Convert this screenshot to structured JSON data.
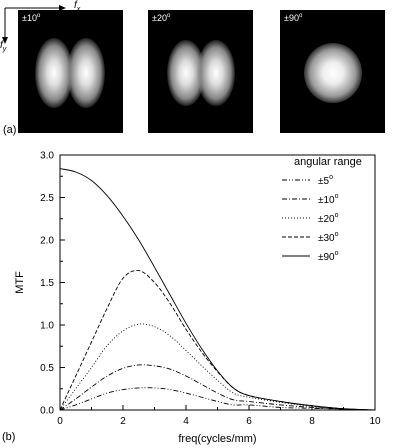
{
  "top_panel": {
    "axis_fx": "f",
    "axis_fx_sub": "x",
    "axis_fy": "f",
    "axis_fy_sub": "y",
    "panels": [
      {
        "label_pm": "±10",
        "label_deg": "o"
      },
      {
        "label_pm": "±20",
        "label_deg": "o"
      },
      {
        "label_pm": "±90",
        "label_deg": "o"
      }
    ],
    "caption": "(a)"
  },
  "bottom_caption": "(b)",
  "chart_data": {
    "type": "line",
    "xlabel": "freq(cycles/mm)",
    "ylabel": "MTF",
    "xlim": [
      0,
      10
    ],
    "ylim": [
      0,
      3.0
    ],
    "xticks": [
      "0",
      "2",
      "4",
      "6",
      "8",
      "10"
    ],
    "yticks": [
      "0.0",
      "0.5",
      "1.0",
      "1.5",
      "2.0",
      "2.5",
      "3.0"
    ],
    "legend_title": "angular range",
    "legend_position": "top-right",
    "series": [
      {
        "name": "±5",
        "name_sup": "o",
        "style": "dash-dot-dot",
        "x": [
          0,
          0.5,
          1,
          1.5,
          2,
          2.5,
          3,
          3.5,
          4,
          4.5,
          5,
          5.5,
          6,
          7,
          8,
          9,
          10
        ],
        "y": [
          0,
          0.06,
          0.13,
          0.2,
          0.24,
          0.26,
          0.26,
          0.24,
          0.2,
          0.15,
          0.1,
          0.06,
          0.06,
          0.03,
          0.02,
          0.01,
          0
        ]
      },
      {
        "name": "±10",
        "name_sup": "o",
        "style": "dash-dot",
        "x": [
          0,
          0.5,
          1,
          1.5,
          2,
          2.5,
          3,
          3.5,
          4,
          4.5,
          5,
          5.5,
          6,
          7,
          8,
          9,
          10
        ],
        "y": [
          0,
          0.13,
          0.27,
          0.4,
          0.49,
          0.53,
          0.52,
          0.48,
          0.4,
          0.3,
          0.2,
          0.12,
          0.1,
          0.06,
          0.03,
          0.01,
          0
        ]
      },
      {
        "name": "±20",
        "name_sup": "o",
        "style": "dotted",
        "x": [
          0,
          0.5,
          1,
          1.5,
          2,
          2.5,
          3,
          3.5,
          4,
          4.5,
          5,
          5.5,
          6,
          7,
          8,
          9,
          10
        ],
        "y": [
          0,
          0.25,
          0.5,
          0.76,
          0.93,
          1.01,
          0.98,
          0.87,
          0.7,
          0.52,
          0.35,
          0.2,
          0.15,
          0.09,
          0.04,
          0.01,
          0
        ]
      },
      {
        "name": "±30",
        "name_sup": "o",
        "style": "dashed",
        "x": [
          0,
          0.5,
          1,
          1.5,
          2,
          2.5,
          3,
          3.5,
          4,
          4.5,
          5,
          5.5,
          6,
          7,
          8,
          9,
          10
        ],
        "y": [
          0,
          0.4,
          0.8,
          1.2,
          1.55,
          1.64,
          1.5,
          1.25,
          0.95,
          0.68,
          0.45,
          0.26,
          0.17,
          0.1,
          0.05,
          0.015,
          0
        ]
      },
      {
        "name": "±90",
        "name_sup": "o",
        "style": "solid",
        "x": [
          0,
          0.5,
          1,
          1.5,
          2,
          2.5,
          3,
          3.5,
          4,
          4.5,
          5,
          5.5,
          6,
          7,
          8,
          9,
          10
        ],
        "y": [
          2.84,
          2.8,
          2.7,
          2.52,
          2.28,
          2.0,
          1.68,
          1.35,
          1.02,
          0.72,
          0.46,
          0.26,
          0.17,
          0.1,
          0.05,
          0.015,
          0
        ]
      }
    ]
  }
}
